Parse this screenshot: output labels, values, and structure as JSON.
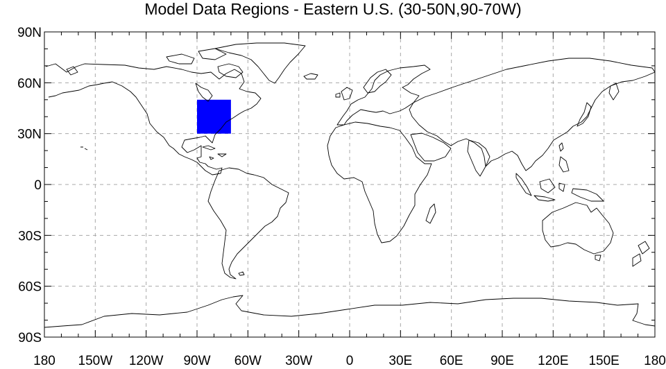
{
  "title": "Model Data Regions - Eastern U.S. (30-50N,90-70W)",
  "map": {
    "projection": "cylindrical-equidistant",
    "lon_range": [
      -180,
      180
    ],
    "lat_range": [
      -90,
      90
    ],
    "grid": true,
    "coastline_color": "#000000"
  },
  "region": {
    "lat_range": [
      30,
      50
    ],
    "lon_range": [
      -90,
      -70
    ],
    "fill_color": "#0000ff"
  },
  "axes": {
    "lat_ticks": [
      {
        "value": 90,
        "label": "90N"
      },
      {
        "value": 60,
        "label": "60N"
      },
      {
        "value": 30,
        "label": "30N"
      },
      {
        "value": 0,
        "label": "0"
      },
      {
        "value": -30,
        "label": "30S"
      },
      {
        "value": -60,
        "label": "60S"
      },
      {
        "value": -90,
        "label": "90S"
      }
    ],
    "lon_ticks": [
      {
        "value": -180,
        "label": "180"
      },
      {
        "value": -150,
        "label": "150W"
      },
      {
        "value": -120,
        "label": "120W"
      },
      {
        "value": -90,
        "label": "90W"
      },
      {
        "value": -60,
        "label": "60W"
      },
      {
        "value": -30,
        "label": "30W"
      },
      {
        "value": 0,
        "label": "0"
      },
      {
        "value": 30,
        "label": "30E"
      },
      {
        "value": 60,
        "label": "60E"
      },
      {
        "value": 90,
        "label": "90E"
      },
      {
        "value": 120,
        "label": "120E"
      },
      {
        "value": 150,
        "label": "150E"
      },
      {
        "value": 180,
        "label": "180"
      }
    ]
  }
}
